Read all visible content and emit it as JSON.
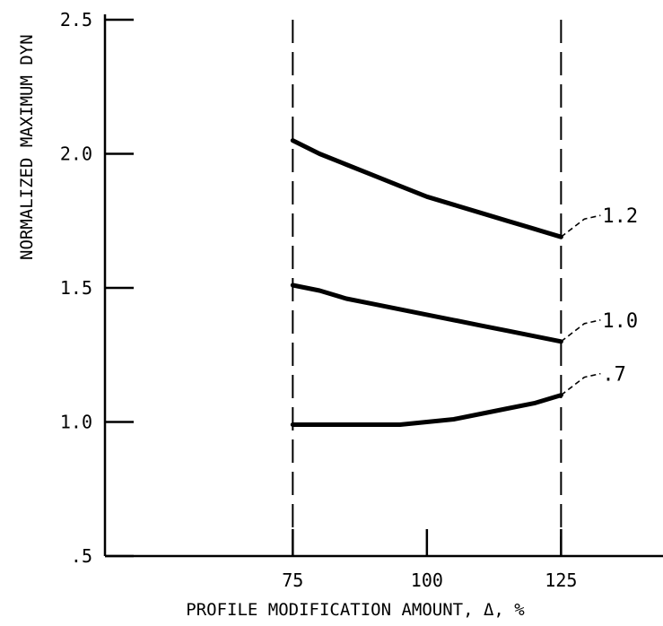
{
  "chart_data": {
    "type": "line",
    "title": "",
    "xlabel": "PROFILE MODIFICATION AMOUNT, Δ, %",
    "ylabel": "NORMALIZED MAXIMUM DYN",
    "xlim": [
      40,
      144
    ],
    "ylim": [
      0.5,
      2.5
    ],
    "x_ticks": [
      75,
      100,
      125
    ],
    "x_tick_labels": [
      "75",
      "100",
      "125"
    ],
    "y_ticks": [
      0.5,
      1.0,
      1.5,
      2.0,
      2.5
    ],
    "y_tick_labels": [
      ".5",
      "1.0",
      "1.5",
      "2.0",
      "2.5"
    ],
    "reference_lines_x": [
      75,
      125
    ],
    "grid": false,
    "series": [
      {
        "name": "1.2",
        "x": [
          75,
          80,
          85,
          90,
          95,
          100,
          105,
          110,
          115,
          120,
          125
        ],
        "y": [
          2.05,
          2.0,
          1.96,
          1.92,
          1.88,
          1.84,
          1.81,
          1.78,
          1.75,
          1.72,
          1.69
        ]
      },
      {
        "name": "1.0",
        "x": [
          75,
          80,
          85,
          90,
          95,
          100,
          105,
          110,
          115,
          120,
          125
        ],
        "y": [
          1.51,
          1.49,
          1.46,
          1.44,
          1.42,
          1.4,
          1.38,
          1.36,
          1.34,
          1.32,
          1.3
        ]
      },
      {
        "name": ".7",
        "x": [
          75,
          80,
          85,
          90,
          95,
          100,
          105,
          110,
          115,
          120,
          125
        ],
        "y": [
          0.99,
          0.99,
          0.99,
          0.99,
          0.99,
          1.0,
          1.01,
          1.03,
          1.05,
          1.07,
          1.1
        ]
      }
    ]
  }
}
